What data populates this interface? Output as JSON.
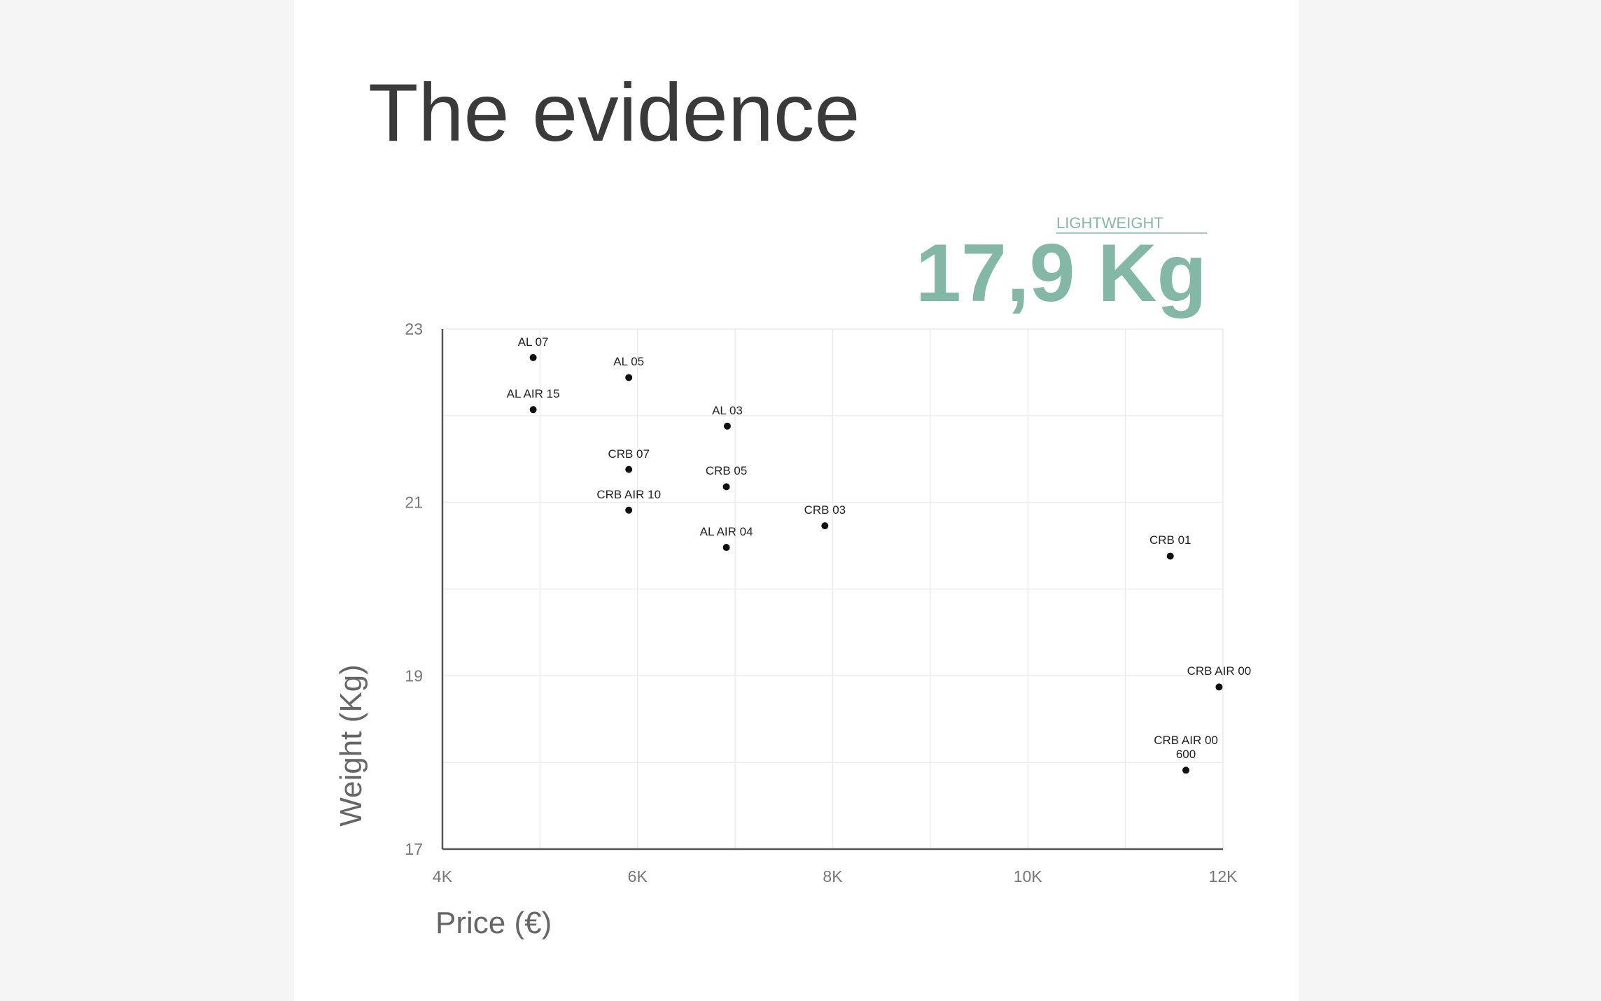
{
  "chart_data": {
    "type": "scatter",
    "title": "The evidence",
    "annotation": {
      "label": "LIGHTWEIGHT",
      "value": "17,9 Kg"
    },
    "x_label": "Price (€)",
    "y_label": "Weight (Kg)",
    "x": [
      4930,
      5910,
      4930,
      6920,
      5910,
      6910,
      5910,
      7920,
      6910,
      11460,
      11960,
      11620
    ],
    "series": [
      {
        "color": "#111111",
        "values": [
          22.67,
          22.44,
          22.07,
          21.88,
          21.38,
          21.18,
          20.91,
          20.73,
          20.48,
          20.38,
          18.87,
          17.91
        ]
      }
    ],
    "point_labels": [
      "AL 07",
      "AL 05",
      "AL AIR 15",
      "AL 03",
      "CRB 07",
      "CRB 05",
      "CRB AIR 10",
      "CRB 03",
      "AL AIR 04",
      "CRB 01",
      "CRB AIR 00",
      "CRB AIR 00\n600"
    ],
    "xlim": [
      4000,
      12000
    ],
    "ylim": [
      17,
      23
    ],
    "xticks": [
      {
        "value": 4000,
        "label": "4K"
      },
      {
        "value": 6000,
        "label": "6K"
      },
      {
        "value": 8000,
        "label": "8K"
      },
      {
        "value": 10000,
        "label": "10K"
      },
      {
        "value": 12000,
        "label": "12K"
      }
    ],
    "yticks": [
      17,
      19,
      21,
      23
    ],
    "x_minor_grid": [
      5000,
      7000,
      9000,
      11000
    ],
    "y_minor_grid": [
      18,
      20,
      22
    ],
    "grid": true,
    "accent_color": "#84b8a6"
  }
}
